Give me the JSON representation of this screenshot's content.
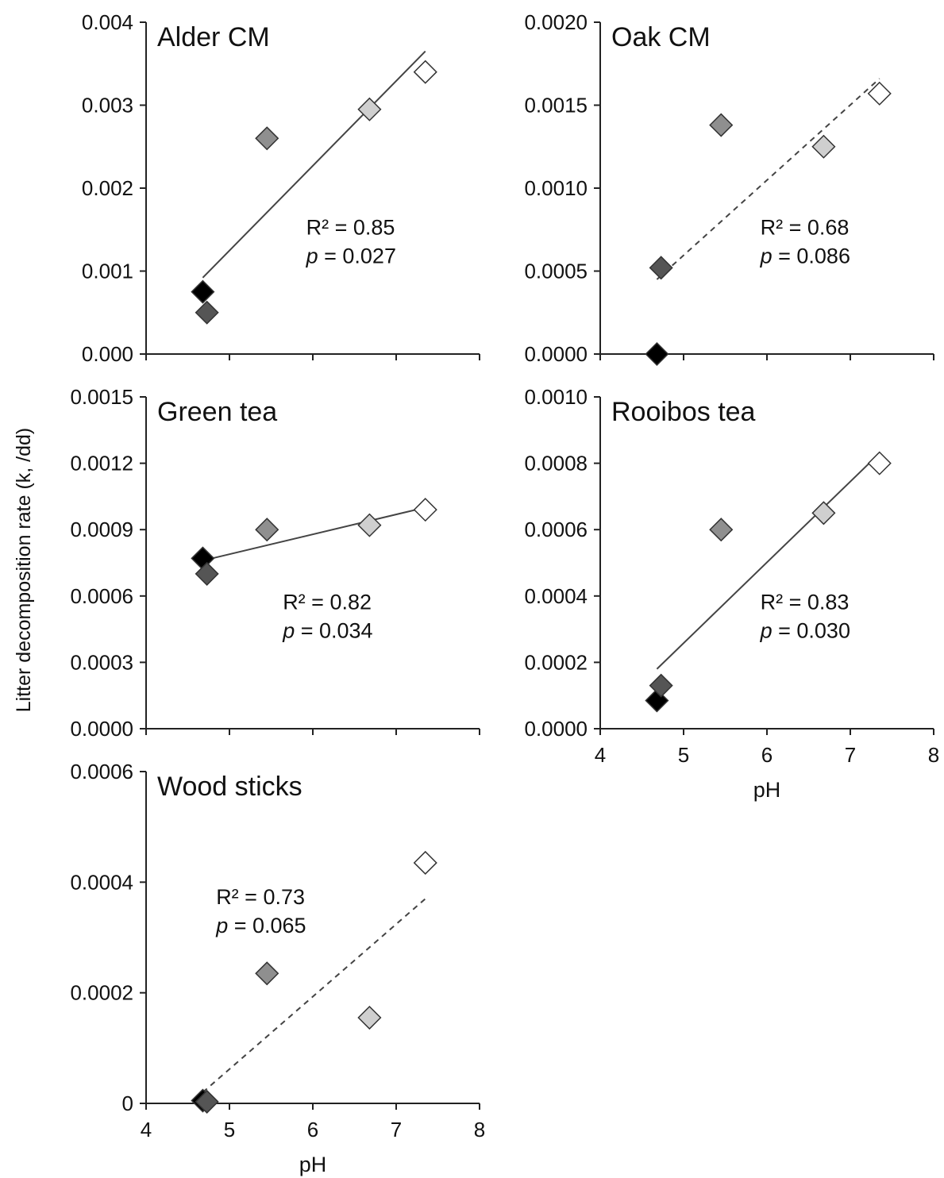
{
  "ylabel": "Litter decomposition rate (k, /dd)",
  "marker_colors": [
    "#000000",
    "#555555",
    "#8f8f8f",
    "#cfcfcf",
    "#ffffff"
  ],
  "chart_data": [
    {
      "type": "scatter",
      "title": "Alder CM",
      "xlabel": "",
      "xlim": [
        4,
        8
      ],
      "ylim": [
        0,
        0.004
      ],
      "yticks": [
        "0.000",
        "0.001",
        "0.002",
        "0.003",
        "0.004"
      ],
      "xticks": [],
      "x": [
        4.68,
        4.73,
        5.45,
        6.68,
        7.35
      ],
      "y": [
        0.00075,
        0.0005,
        0.0026,
        0.00295,
        0.0034
      ],
      "fit": {
        "x": [
          4.68,
          7.35
        ],
        "y": [
          0.00092,
          0.00365
        ],
        "style": "solid"
      },
      "stats": {
        "r2": "R² = 0.85",
        "p_label": "p",
        "p_value": " = 0.027"
      },
      "stats_anchor": "right"
    },
    {
      "type": "scatter",
      "title": "Oak CM",
      "xlabel": "",
      "xlim": [
        4,
        8
      ],
      "ylim": [
        0,
        0.002
      ],
      "yticks": [
        "0.0000",
        "0.0005",
        "0.0010",
        "0.0015",
        "0.0020"
      ],
      "xticks": [],
      "x": [
        4.68,
        4.73,
        5.45,
        6.68,
        7.35
      ],
      "y": [
        0.0,
        0.00052,
        0.00138,
        0.00125,
        0.00157
      ],
      "fit": {
        "x": [
          4.68,
          7.35
        ],
        "y": [
          0.00045,
          0.00166
        ],
        "style": "dashed"
      },
      "stats": {
        "r2": "R² = 0.68",
        "p_label": "p",
        "p_value": " = 0.086"
      },
      "stats_anchor": "right"
    },
    {
      "type": "scatter",
      "title": "Green tea",
      "xlabel": "",
      "xlim": [
        4,
        8
      ],
      "ylim": [
        0,
        0.0015
      ],
      "yticks": [
        "0.0000",
        "0.0003",
        "0.0006",
        "0.0009",
        "0.0012",
        "0.0015"
      ],
      "xticks": [],
      "x": [
        4.68,
        4.73,
        5.45,
        6.68,
        7.35
      ],
      "y": [
        0.00077,
        0.0007,
        0.0009,
        0.00092,
        0.00099
      ],
      "fit": {
        "x": [
          4.68,
          7.35
        ],
        "y": [
          0.00076,
          0.001
        ],
        "style": "solid"
      },
      "stats": {
        "r2": "R² = 0.82",
        "p_label": "p",
        "p_value": " = 0.034"
      },
      "stats_anchor": "center"
    },
    {
      "type": "scatter",
      "title": "Rooibos tea",
      "xlabel": "pH",
      "xlim": [
        4,
        8
      ],
      "ylim": [
        0,
        0.001
      ],
      "yticks": [
        "0.0000",
        "0.0002",
        "0.0004",
        "0.0006",
        "0.0008",
        "0.0010"
      ],
      "xticks": [
        "4",
        "5",
        "6",
        "7",
        "8"
      ],
      "x": [
        4.68,
        4.73,
        5.45,
        6.68,
        7.35
      ],
      "y": [
        8.5e-05,
        0.00013,
        0.0006,
        0.00065,
        0.0008
      ],
      "fit": {
        "x": [
          4.68,
          7.35
        ],
        "y": [
          0.00018,
          0.00083
        ],
        "style": "solid"
      },
      "stats": {
        "r2": "R² = 0.83",
        "p_label": "p",
        "p_value": " = 0.030"
      },
      "stats_anchor": "right"
    },
    {
      "type": "scatter",
      "title": "Wood sticks",
      "xlabel": "pH",
      "xlim": [
        4,
        8
      ],
      "ylim": [
        0,
        0.0006
      ],
      "yticks": [
        "0",
        "0.0002",
        "0.0004",
        "0.0006"
      ],
      "xticks": [
        "4",
        "5",
        "6",
        "7",
        "8"
      ],
      "x": [
        4.68,
        4.73,
        5.45,
        6.68,
        7.35
      ],
      "y": [
        5e-06,
        3e-06,
        0.000235,
        0.000155,
        0.000435
      ],
      "fit": {
        "x": [
          4.68,
          7.35
        ],
        "y": [
          2e-05,
          0.00037
        ],
        "style": "dashed"
      },
      "stats": {
        "r2": "R² = 0.73",
        "p_label": "p",
        "p_value": " = 0.065"
      },
      "stats_anchor": "left"
    }
  ]
}
